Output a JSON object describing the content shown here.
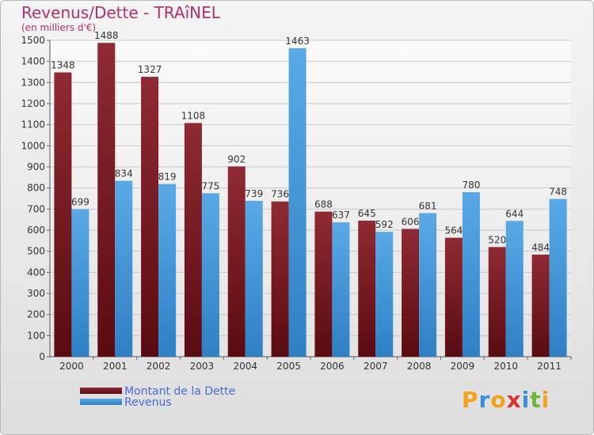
{
  "title": "Revenus/Dette - TRAîNEL",
  "subtitle": "(en milliers d'€)",
  "colors": {
    "dette": "#6b0f16",
    "revenus": "#3b8fd6",
    "title": "#b0306a",
    "legend_text": "#4a6ad8"
  },
  "legend": {
    "items": [
      {
        "label": "Montant de la Dette",
        "color": "#6b0f16"
      },
      {
        "label": "Revenus",
        "color": "#3b8fd6"
      }
    ]
  },
  "logo": {
    "letters": [
      "P",
      "r",
      "o",
      "x",
      "i",
      "t",
      "i"
    ],
    "colors": [
      "#f3a21c",
      "#3a8fd8",
      "#f3a21c",
      "#d9342b",
      "#3a8fd8",
      "#6fb43f",
      "#f3a21c"
    ]
  },
  "chart_data": {
    "type": "bar",
    "categories": [
      "2000",
      "2001",
      "2002",
      "2003",
      "2004",
      "2005",
      "2006",
      "2007",
      "2008",
      "2009",
      "2010",
      "2011"
    ],
    "series": [
      {
        "name": "Montant de la Dette",
        "values": [
          1348,
          1488,
          1327,
          1108,
          902,
          736,
          688,
          645,
          606,
          564,
          520,
          484
        ]
      },
      {
        "name": "Revenus",
        "values": [
          699,
          834,
          819,
          775,
          739,
          1463,
          637,
          592,
          681,
          780,
          644,
          748
        ]
      }
    ],
    "title": "Revenus/Dette - TRAîNEL",
    "ylabel": "(en milliers d'€)",
    "ylim": [
      0,
      1500
    ],
    "yticks": [
      0,
      100,
      200,
      300,
      400,
      500,
      600,
      700,
      800,
      900,
      1000,
      1100,
      1200,
      1300,
      1400,
      1500
    ],
    "grid": true,
    "legend_position": "bottom-left"
  }
}
